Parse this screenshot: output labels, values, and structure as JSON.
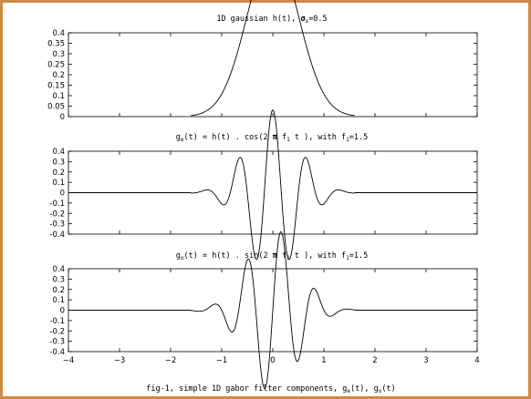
{
  "colors": {
    "border": "#cd8a48",
    "line": "#000000",
    "background": "#ffffff"
  },
  "chart_data": [
    {
      "type": "line",
      "title": {
        "pre": "1D gaussian h(t), ",
        "sigma": "σ",
        "sub": "x",
        "post": "=0.5"
      },
      "xlim": [
        -4,
        4
      ],
      "ylim": [
        0,
        0.4
      ],
      "yticks": [
        0,
        0.05,
        0.1,
        0.15,
        0.2,
        0.25,
        0.3,
        0.35,
        0.4
      ],
      "yticklabels": [
        "0",
        "0.05",
        "0.1",
        "0.15",
        "0.2",
        "0.25",
        "0.3",
        "0.35",
        "0.4"
      ],
      "function": "gaussian",
      "sigma": 0.5,
      "support": [
        -1.6,
        1.6
      ],
      "grid": false
    },
    {
      "type": "line",
      "title": {
        "p1": "g",
        "s1": "e",
        "p2": "(t) = h(t) . cos(2 ",
        "pi": "π",
        "p3": " f",
        "s2": "1",
        "p4": " t ), with f",
        "s3": "1",
        "p5": "=1.5"
      },
      "xlim": [
        -4,
        4
      ],
      "ylim": [
        -0.4,
        0.4
      ],
      "yticks": [
        -0.4,
        -0.3,
        -0.2,
        -0.1,
        0,
        0.1,
        0.2,
        0.3,
        0.4
      ],
      "yticklabels": [
        "-0.4",
        "-0.3",
        "-0.2",
        "-0.1",
        "0",
        "0.1",
        "0.2",
        "0.3",
        "0.4"
      ],
      "function": "gabor_cos",
      "sigma": 0.5,
      "frequency": 1.5,
      "support": [
        -1.6,
        1.6
      ],
      "grid": false
    },
    {
      "type": "line",
      "title": {
        "p1": "g",
        "s1": "o",
        "p2": "(t) = h(t) . sin(2 ",
        "pi": "π",
        "p3": " f",
        "s2": "1",
        "p4": " t ), with f",
        "s3": "1",
        "p5": "=1.5"
      },
      "xlim": [
        -4,
        4
      ],
      "ylim": [
        -0.4,
        0.4
      ],
      "yticks": [
        -0.4,
        -0.3,
        -0.2,
        -0.1,
        0,
        0.1,
        0.2,
        0.3,
        0.4
      ],
      "yticklabels": [
        "-0.4",
        "-0.3",
        "-0.2",
        "-0.1",
        "0",
        "0.1",
        "0.2",
        "0.3",
        "0.4"
      ],
      "xticks": [
        -4,
        -3,
        -2,
        -1,
        0,
        1,
        2,
        3,
        4
      ],
      "xticklabels": [
        "−4",
        "−3",
        "−2",
        "−1",
        "0",
        "1",
        "2",
        "3",
        "4"
      ],
      "function": "gabor_sin",
      "sigma": 0.5,
      "frequency": 1.5,
      "support": [
        -1.6,
        1.6
      ],
      "grid": false
    }
  ],
  "xlabel": {
    "p1": "fig-1, simple 1D gabor filter components, g",
    "s1": "e",
    "p2": "(t), g",
    "s2": "o",
    "p3": "(t)"
  }
}
